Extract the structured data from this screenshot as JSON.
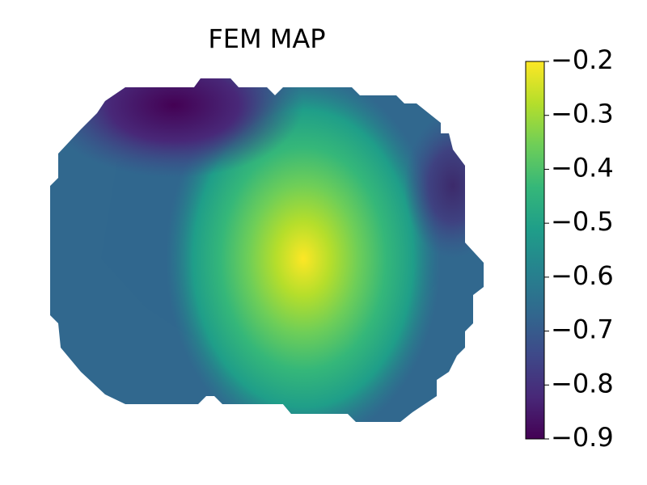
{
  "chart_data": {
    "type": "heatmap",
    "title": "FEM MAP",
    "clim": [
      -0.9,
      -0.2
    ],
    "cticks": [
      {
        "value": -0.9,
        "label": "−0.9"
      },
      {
        "value": -0.8,
        "label": "−0.8"
      },
      {
        "value": -0.7,
        "label": "−0.7"
      },
      {
        "value": -0.6,
        "label": "−0.6"
      },
      {
        "value": -0.5,
        "label": "−0.5"
      },
      {
        "value": -0.4,
        "label": "−0.4"
      },
      {
        "value": -0.3,
        "label": "−0.3"
      },
      {
        "value": -0.2,
        "label": "−0.2"
      }
    ],
    "colormap": [
      "#440154",
      "#482878",
      "#3e4989",
      "#31688e",
      "#26828e",
      "#1f9e89",
      "#35b779",
      "#6ece58",
      "#b5de2b",
      "#fde725"
    ]
  }
}
